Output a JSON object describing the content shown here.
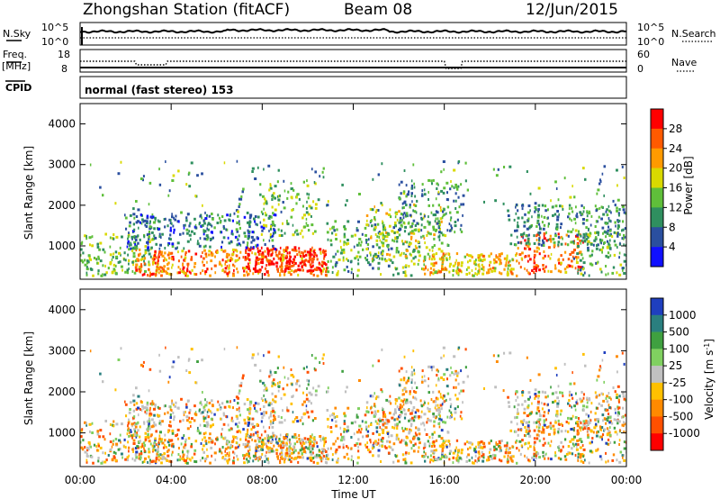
{
  "header": {
    "station": "Zhongshan Station (fitACF)",
    "beam": "Beam 08",
    "date": "12/Jun/2015"
  },
  "status_panels": {
    "nsky_label": "N.Sky",
    "nsky_ticks": [
      "10^5",
      "10^0"
    ],
    "nsearch_label": "N.Search",
    "nsearch_ticks": [
      "10^5",
      "10^0"
    ],
    "freq_label": "Freq.",
    "freq_unit": "[MHz]",
    "freq_ticks": [
      "18",
      "8"
    ],
    "nave_label": "Nave",
    "nave_ticks": [
      "60",
      "0"
    ],
    "cpid_label": "CPID",
    "cpid_text": "normal (fast stereo) 153"
  },
  "chart_data": [
    {
      "type": "heatmap",
      "title": "",
      "variable": "Power",
      "ylabel": "Slant Range [km]",
      "xlabel": "",
      "ylim": [
        180,
        4500
      ],
      "yticks": [
        1000,
        2000,
        3000,
        4000
      ],
      "x_ticks": [
        "00:00",
        "04:00",
        "08:00",
        "12:00",
        "16:00",
        "20:00",
        "00:00"
      ],
      "colorbar": {
        "label": "Power [dB]",
        "ticks": [
          "28",
          "24",
          "20",
          "16",
          "12",
          "8",
          "4"
        ],
        "colors": [
          "#ff0000",
          "#ff5a00",
          "#ff9a00",
          "#d9d900",
          "#5fbf3a",
          "#2f8f5f",
          "#2a4f9f",
          "#1010ff"
        ]
      }
    },
    {
      "type": "heatmap",
      "title": "",
      "variable": "Velocity",
      "ylabel": "Slant Range [km]",
      "xlabel": "Time UT",
      "ylim": [
        180,
        4500
      ],
      "yticks": [
        1000,
        2000,
        3000,
        4000
      ],
      "x_ticks": [
        "00:00",
        "04:00",
        "08:00",
        "12:00",
        "16:00",
        "20:00",
        "00:00"
      ],
      "colorbar": {
        "label": "Velocity [m s^-1]",
        "ticks": [
          "1000",
          "500",
          "100",
          "25",
          "-25",
          "-100",
          "-500",
          "-1000"
        ],
        "colors": [
          "#1f3fbf",
          "#2a7f7f",
          "#3fa040",
          "#80d060",
          "#c0c0c0",
          "#ffc000",
          "#ff8a00",
          "#ff5000",
          "#ff0000"
        ]
      }
    }
  ]
}
